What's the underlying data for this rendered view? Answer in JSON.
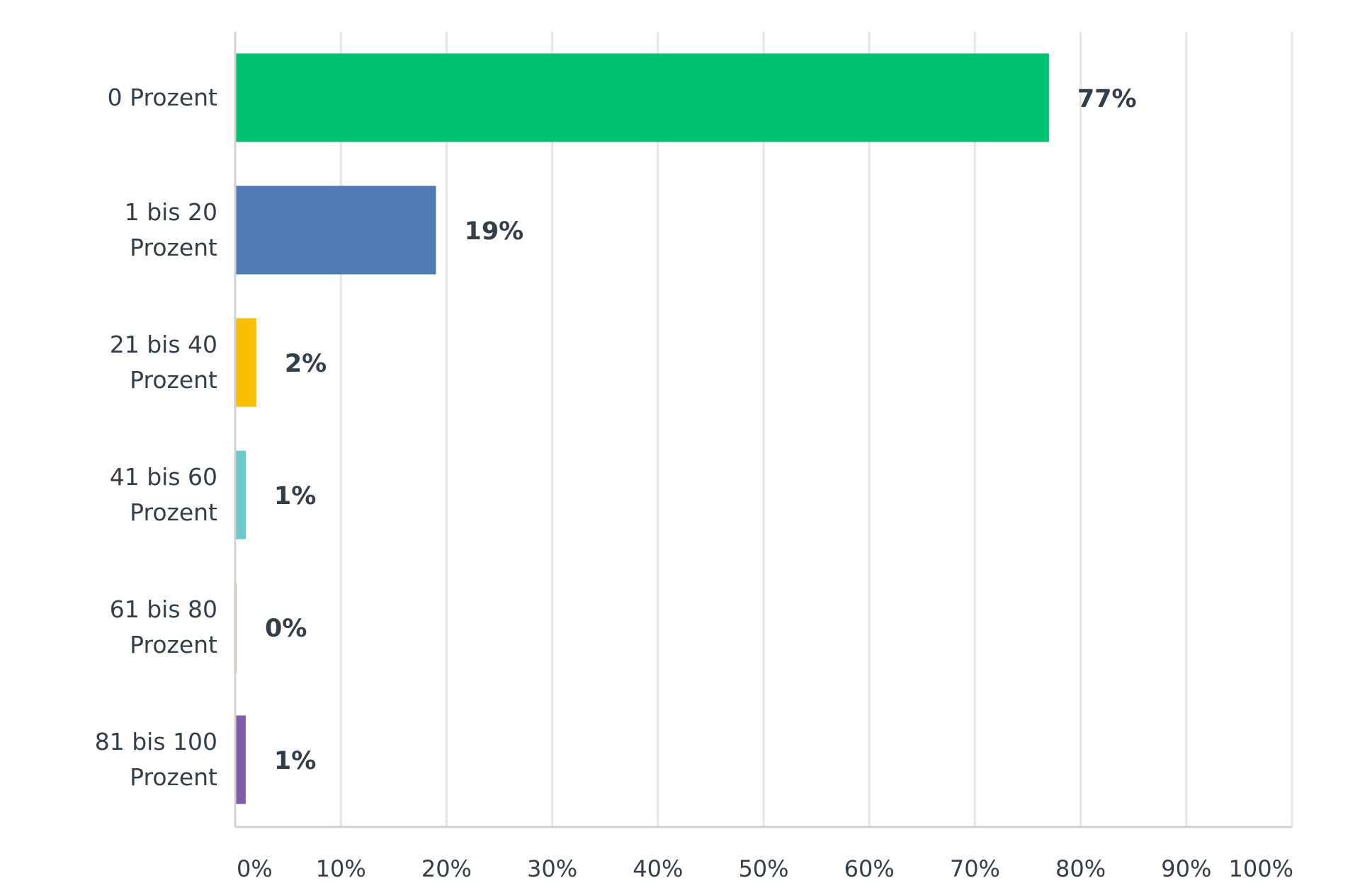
{
  "chart_data": {
    "type": "bar",
    "orientation": "horizontal",
    "categories": [
      [
        "0 Prozent"
      ],
      [
        "1 bis 20",
        "Prozent"
      ],
      [
        "21 bis 40",
        "Prozent"
      ],
      [
        "41 bis 60",
        "Prozent"
      ],
      [
        "61 bis 80",
        "Prozent"
      ],
      [
        "81 bis 100",
        "Prozent"
      ]
    ],
    "values": [
      77,
      19,
      2,
      1,
      0,
      1
    ],
    "value_labels": [
      "77%",
      "19%",
      "2%",
      "1%",
      "0%",
      "1%"
    ],
    "colors": [
      "#00bf6f",
      "#507cb6",
      "#f9be00",
      "#6bc8cd",
      "#ff8b4f",
      "#7f5fa9"
    ],
    "xlim": [
      0,
      100
    ],
    "xticks": [
      0,
      10,
      20,
      30,
      40,
      50,
      60,
      70,
      80,
      90,
      100
    ],
    "xtick_labels": [
      "0%",
      "10%",
      "20%",
      "30%",
      "40%",
      "50%",
      "60%",
      "70%",
      "80%",
      "90%",
      "100%"
    ],
    "grid": true,
    "legend": "none"
  }
}
